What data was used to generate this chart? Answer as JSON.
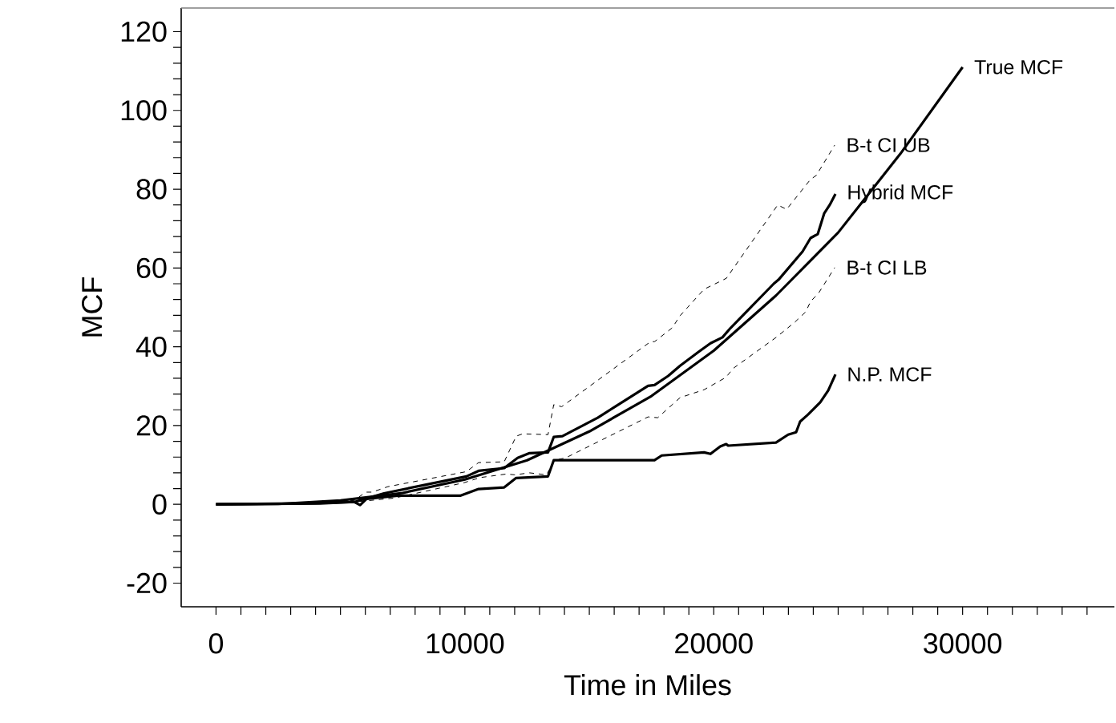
{
  "chart_data": {
    "type": "line",
    "xlabel": "Time in Miles",
    "ylabel": "MCF",
    "xlim": [
      -1400,
      36100
    ],
    "ylim": [
      -26,
      126
    ],
    "xticks": [
      0,
      {
        "value": 1000,
        "label": null
      },
      {
        "value": 2000,
        "label": null
      },
      {
        "value": 3000,
        "label": null
      },
      {
        "value": 4000,
        "label": null
      },
      {
        "value": 5000,
        "label": null
      },
      {
        "value": 6000,
        "label": null
      },
      {
        "value": 7000,
        "label": null
      },
      {
        "value": 8000,
        "label": null
      },
      {
        "value": 9000,
        "label": null
      },
      10000,
      {
        "value": 11000,
        "label": null
      },
      {
        "value": 12000,
        "label": null
      },
      {
        "value": 13000,
        "label": null
      },
      {
        "value": 14000,
        "label": null
      },
      {
        "value": 15000,
        "label": null
      },
      {
        "value": 16000,
        "label": null
      },
      {
        "value": 17000,
        "label": null
      },
      {
        "value": 18000,
        "label": null
      },
      {
        "value": 19000,
        "label": null
      },
      20000,
      {
        "value": 21000,
        "label": null
      },
      {
        "value": 22000,
        "label": null
      },
      {
        "value": 23000,
        "label": null
      },
      {
        "value": 24000,
        "label": null
      },
      {
        "value": 25000,
        "label": null
      },
      {
        "value": 26000,
        "label": null
      },
      {
        "value": 27000,
        "label": null
      },
      {
        "value": 28000,
        "label": null
      },
      {
        "value": 29000,
        "label": null
      },
      30000,
      {
        "value": 31000,
        "label": null
      },
      {
        "value": 32000,
        "label": null
      },
      {
        "value": 33000,
        "label": null
      },
      {
        "value": 34000,
        "label": null
      },
      {
        "value": 35000,
        "label": null
      }
    ],
    "yticks": [
      -20,
      {
        "value": -16,
        "label": null
      },
      {
        "value": -12,
        "label": null
      },
      {
        "value": -8,
        "label": null
      },
      {
        "value": -4,
        "label": null
      },
      0,
      {
        "value": 4,
        "label": null
      },
      {
        "value": 8,
        "label": null
      },
      {
        "value": 12,
        "label": null
      },
      {
        "value": 16,
        "label": null
      },
      20,
      {
        "value": 24,
        "label": null
      },
      {
        "value": 28,
        "label": null
      },
      {
        "value": 32,
        "label": null
      },
      {
        "value": 36,
        "label": null
      },
      40,
      {
        "value": 44,
        "label": null
      },
      {
        "value": 48,
        "label": null
      },
      {
        "value": 52,
        "label": null
      },
      {
        "value": 56,
        "label": null
      },
      60,
      {
        "value": 64,
        "label": null
      },
      {
        "value": 68,
        "label": null
      },
      {
        "value": 72,
        "label": null
      },
      {
        "value": 76,
        "label": null
      },
      80,
      {
        "value": 84,
        "label": null
      },
      {
        "value": 88,
        "label": null
      },
      {
        "value": 92,
        "label": null
      },
      {
        "value": 96,
        "label": null
      },
      100,
      {
        "value": 104,
        "label": null
      },
      {
        "value": 108,
        "label": null
      },
      {
        "value": 112,
        "label": null
      },
      {
        "value": 116,
        "label": null
      },
      120
    ],
    "grid": false,
    "series": [
      {
        "name": "True MCF",
        "color": "#000000",
        "line_style": "solid",
        "x": [
          0,
          2500,
          5000,
          7500,
          10000,
          12500,
          15000,
          17500,
          20000,
          22500,
          25000,
          27500,
          30000
        ],
        "values": [
          0,
          0.1,
          1.0,
          2.9,
          6.3,
          11.2,
          18.5,
          27.5,
          39,
          53,
          69,
          89,
          111
        ]
      },
      {
        "name": "B-t CI UB",
        "color": "#000000",
        "line_style": "dashed",
        "x": [
          0,
          4000,
          5560,
          6010,
          6270,
          6910,
          10060,
          10550,
          11580,
          12060,
          12320,
          13340,
          13570,
          13890,
          17460,
          17620,
          18330,
          18650,
          19610,
          20190,
          20510,
          22570,
          22930,
          23890,
          24120,
          24860
        ],
        "values": [
          0,
          0.3,
          1,
          3.1,
          3.1,
          4.5,
          8.3,
          10.6,
          10.8,
          17.3,
          17.9,
          17.7,
          25.3,
          24.8,
          41.3,
          41.3,
          44.8,
          47.9,
          54.6,
          56.4,
          57.4,
          76,
          74.9,
          82.5,
          83.5,
          91.2
        ]
      },
      {
        "name": "Hybrid MCF",
        "color": "#000000",
        "line_style": "solid",
        "x": [
          0,
          4000,
          5560,
          6750,
          10060,
          10550,
          11580,
          12120,
          12600,
          13340,
          13570,
          13920,
          15340,
          17360,
          17620,
          18170,
          18650,
          19390,
          19870,
          20350,
          20680,
          22410,
          22600,
          23570,
          23890,
          24180,
          24440,
          24660,
          24890
        ],
        "values": [
          0,
          0.3,
          0.6,
          2.8,
          7.1,
          8.5,
          9.2,
          11.8,
          13,
          13.2,
          17.1,
          17.3,
          22,
          30.1,
          30.3,
          32.6,
          35.2,
          38.7,
          40.9,
          42.4,
          44.8,
          56,
          57,
          64.2,
          67.6,
          68.6,
          73.9,
          76,
          78.8
        ]
      },
      {
        "name": "B-t CI LB",
        "color": "#000000",
        "line_style": "dashed",
        "x": [
          0,
          4000,
          5560,
          7170,
          9970,
          10610,
          11670,
          12000,
          12600,
          13280,
          13600,
          14050,
          17360,
          17750,
          18650,
          19610,
          20480,
          20800,
          22510,
          23250,
          23700,
          23890,
          24210,
          24860
        ],
        "values": [
          0,
          0.2,
          0.6,
          1.6,
          5.5,
          6.8,
          7.7,
          7.5,
          8,
          7.5,
          11.2,
          11.8,
          22.2,
          22,
          27.1,
          29.1,
          32.2,
          34.6,
          42.4,
          46.2,
          48.9,
          51.5,
          53.6,
          60.1
        ]
      },
      {
        "name": "N.P. MCF",
        "color": "#000000",
        "line_style": "solid",
        "x": [
          0,
          4180,
          5560,
          5790,
          6050,
          7300,
          9810,
          10550,
          11580,
          12060,
          13340,
          13570,
          17620,
          17910,
          19610,
          19870,
          20260,
          20500,
          20580,
          22500,
          22990,
          23310,
          23470,
          23790,
          24280,
          24600,
          24890
        ],
        "values": [
          0,
          0.2,
          0.6,
          -0.2,
          1.4,
          2.2,
          2.2,
          3.9,
          4.3,
          6.7,
          7.1,
          11.2,
          11.2,
          12.4,
          13.2,
          12.8,
          14.7,
          15.3,
          14.9,
          15.7,
          17.7,
          18.3,
          21,
          22.8,
          25.9,
          28.9,
          33
        ]
      }
    ]
  }
}
